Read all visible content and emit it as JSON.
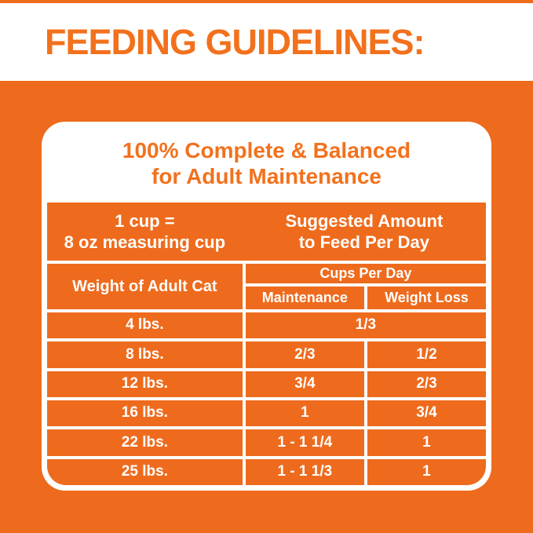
{
  "colors": {
    "orange": "#EE6B1D",
    "orange_text": "#F2711D",
    "white": "#FFFFFF"
  },
  "header": {
    "title": "FEEDING GUIDELINES:"
  },
  "card": {
    "heading": {
      "line1": "100% Complete & Balanced",
      "line2": "for Adult Maintenance"
    },
    "cup_info": {
      "line1": "1 cup =",
      "line2": "8 oz measuring cup"
    },
    "suggested": {
      "line1": "Suggested Amount",
      "line2": "to Feed Per Day"
    },
    "table": {
      "weight_header": "Weight of Adult Cat",
      "cups_header": "Cups Per Day",
      "columns": [
        "Maintenance",
        "Weight Loss"
      ],
      "rows": [
        {
          "weight": "4 lbs.",
          "maintenance": "1/3",
          "weight_loss": "",
          "spans_both": true
        },
        {
          "weight": "8 lbs.",
          "maintenance": "2/3",
          "weight_loss": "1/2",
          "spans_both": false
        },
        {
          "weight": "12 lbs.",
          "maintenance": "3/4",
          "weight_loss": "2/3",
          "spans_both": false
        },
        {
          "weight": "16 lbs.",
          "maintenance": "1",
          "weight_loss": "3/4",
          "spans_both": false
        },
        {
          "weight": "22 lbs.",
          "maintenance": "1 - 1 1/4",
          "weight_loss": "1",
          "spans_both": false
        },
        {
          "weight": "25 lbs.",
          "maintenance": "1 - 1 1/3",
          "weight_loss": "1",
          "spans_both": false
        }
      ]
    }
  }
}
